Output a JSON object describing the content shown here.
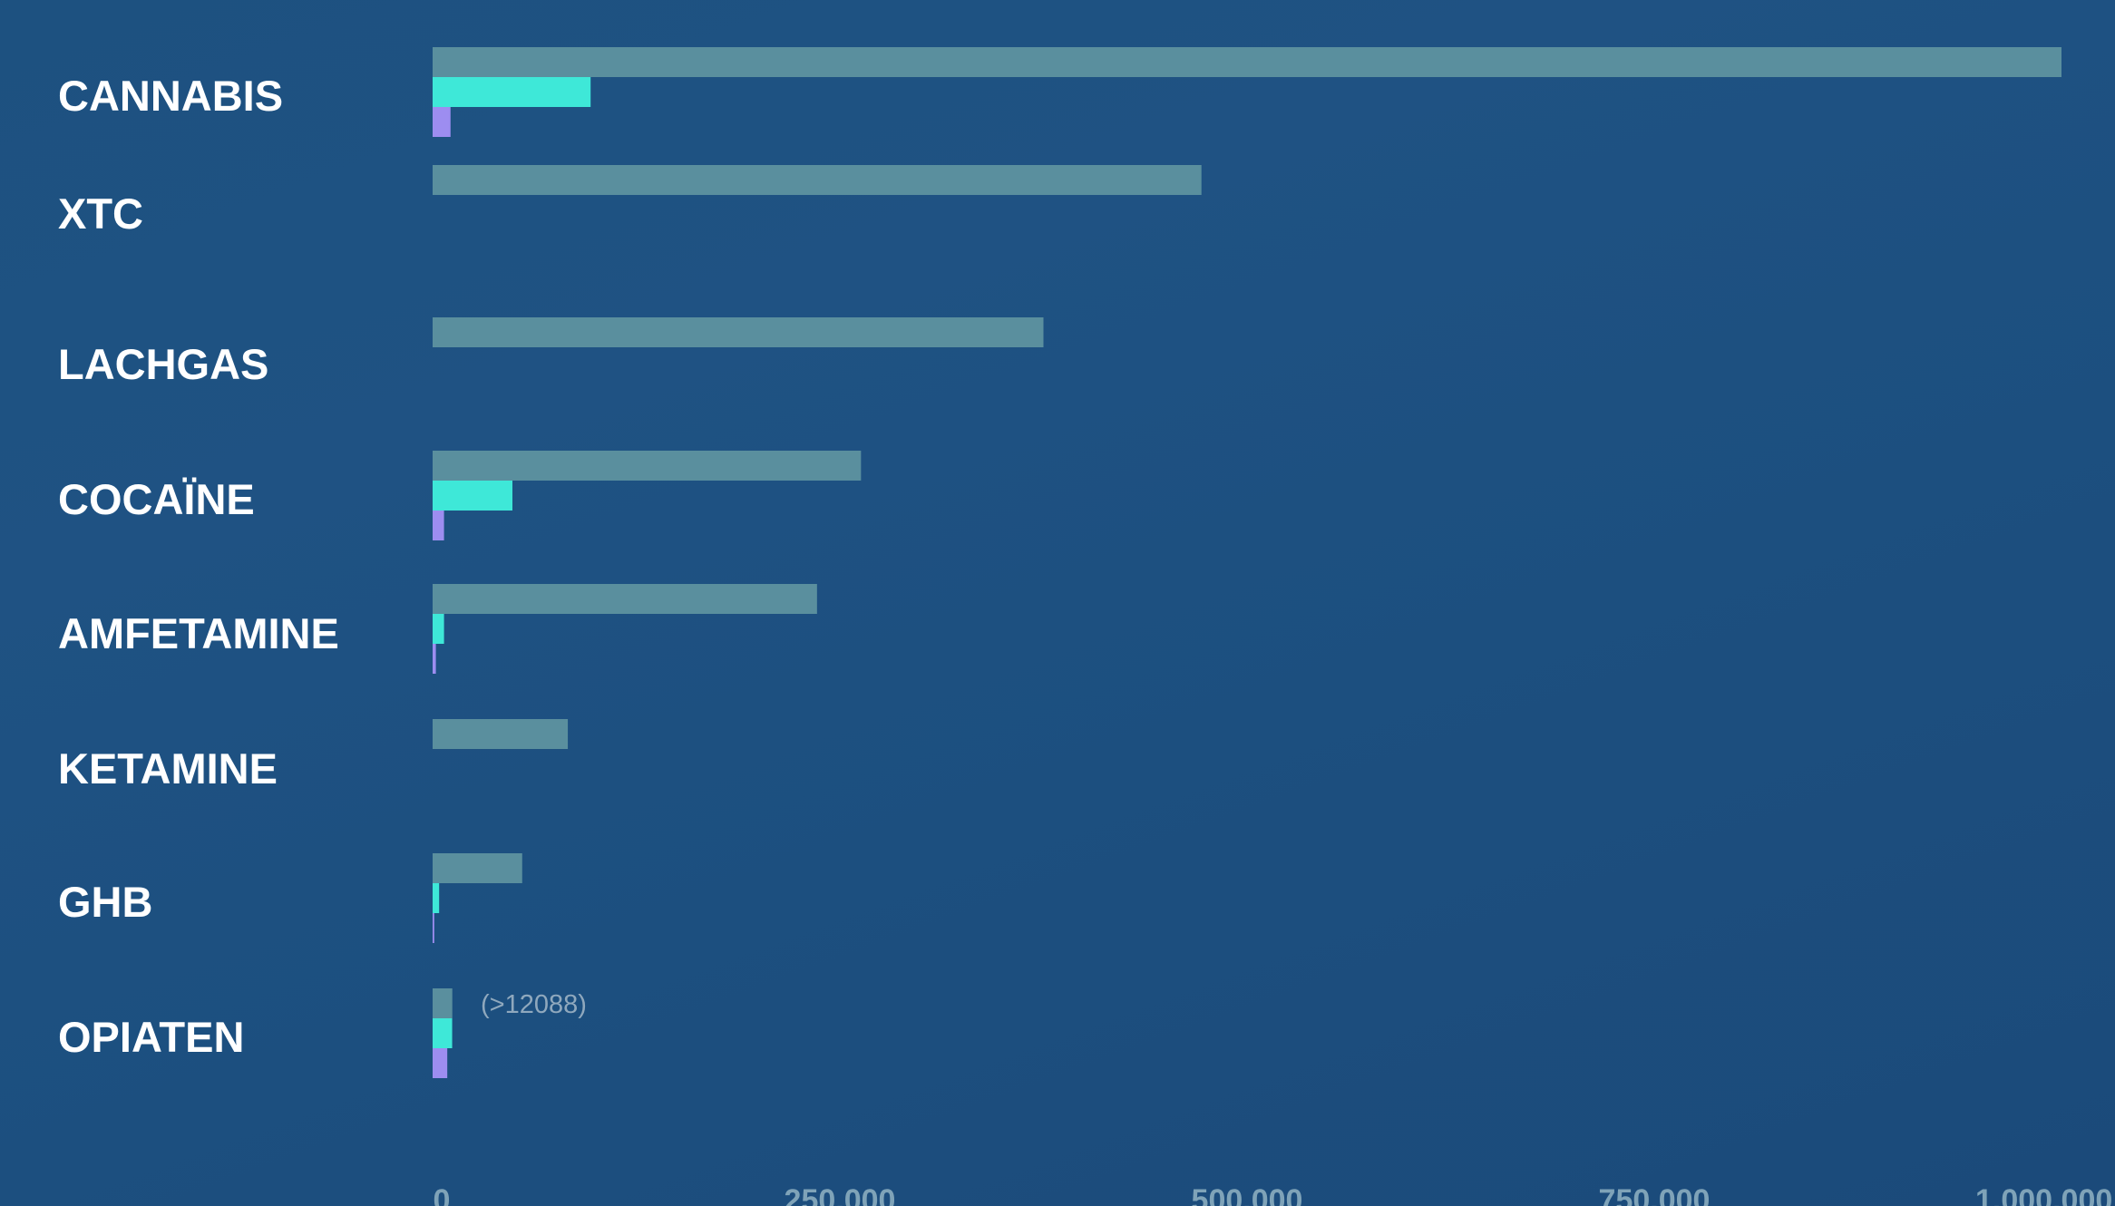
{
  "chart_data": {
    "type": "bar",
    "orientation": "horizontal",
    "categories": [
      "CANNABIS",
      "XTC",
      "LACHGAS",
      "COCAÏNE",
      "AMFETAMINE",
      "KETAMINE",
      "GHB",
      "OPIATEN"
    ],
    "series": [
      {
        "color": "#5a8f9e",
        "values": [
          1000000,
          472000,
          375000,
          263000,
          236000,
          83000,
          55000,
          12088
        ]
      },
      {
        "color": "#3ee8d8",
        "values": [
          97000,
          null,
          null,
          49000,
          7000,
          null,
          4000,
          12000
        ]
      },
      {
        "color": "#9d8df0",
        "values": [
          11000,
          null,
          null,
          7000,
          2000,
          null,
          1000,
          9000
        ]
      }
    ],
    "xlim": [
      0,
      1000000
    ],
    "xticks": [
      0,
      250000,
      500000,
      750000,
      1000000
    ],
    "xtick_labels": [
      "0",
      "250.000",
      "500.000",
      "750.000",
      "1.000.000"
    ],
    "grid": false,
    "annotations": [
      {
        "category": "OPIATEN",
        "text": "(>12088)"
      }
    ]
  }
}
